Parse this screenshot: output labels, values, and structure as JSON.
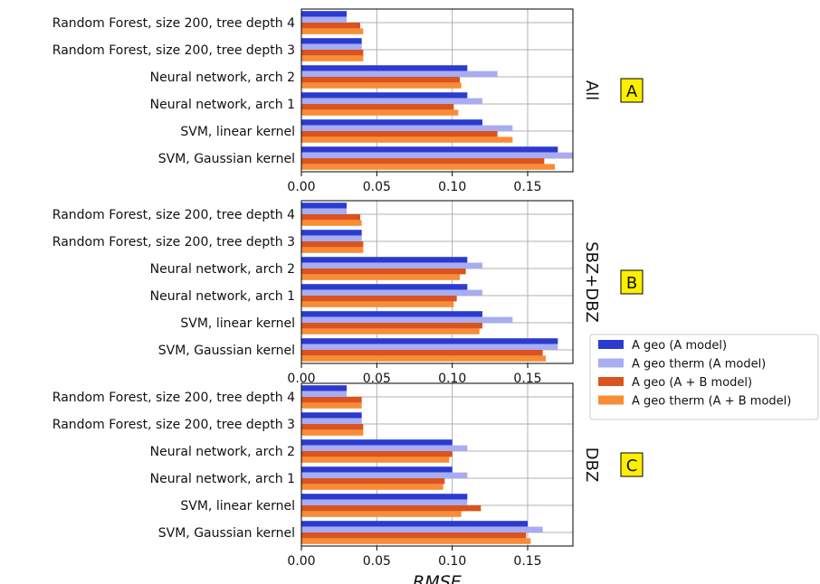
{
  "chart_data": [
    {
      "type": "bar",
      "orientation": "horizontal",
      "panel_label": "A",
      "side_label": "All",
      "categories": [
        "Random Forest, size 200, tree depth 4",
        "Random Forest, size 200, tree depth 3",
        "Neural network, arch 2",
        "Neural network, arch 1",
        "SVM, linear kernel",
        "SVM, Gaussian kernel"
      ],
      "series": [
        {
          "name": "A geo (A model)",
          "values": [
            0.03,
            0.04,
            0.11,
            0.11,
            0.12,
            0.17
          ]
        },
        {
          "name": "A geo therm (A model)",
          "values": [
            0.03,
            0.04,
            0.13,
            0.12,
            0.14,
            0.18
          ]
        },
        {
          "name": "A geo (A + B model)",
          "values": [
            0.039,
            0.041,
            0.105,
            0.101,
            0.13,
            0.161
          ]
        },
        {
          "name": "A geo therm (A + B  model)",
          "values": [
            0.041,
            0.041,
            0.106,
            0.104,
            0.14,
            0.168
          ]
        }
      ],
      "xlim": [
        0,
        0.18
      ],
      "xticks": [
        "0.00",
        "0.05",
        "0.10",
        "0.15"
      ],
      "grid": true
    },
    {
      "type": "bar",
      "orientation": "horizontal",
      "panel_label": "B",
      "side_label": "SBZ+DBZ",
      "categories": [
        "Random Forest, size 200, tree depth 4",
        "Random Forest, size 200, tree depth 3",
        "Neural network, arch 2",
        "Neural network, arch 1",
        "SVM, linear kernel",
        "SVM, Gaussian kernel"
      ],
      "series": [
        {
          "name": "A geo (A model)",
          "values": [
            0.03,
            0.04,
            0.11,
            0.11,
            0.12,
            0.17
          ]
        },
        {
          "name": "A geo therm (A model)",
          "values": [
            0.03,
            0.04,
            0.12,
            0.12,
            0.14,
            0.17
          ]
        },
        {
          "name": "A geo (A + B model)",
          "values": [
            0.039,
            0.041,
            0.109,
            0.103,
            0.12,
            0.16
          ]
        },
        {
          "name": "A geo therm (A + B  model)",
          "values": [
            0.04,
            0.041,
            0.105,
            0.101,
            0.118,
            0.162
          ]
        }
      ],
      "xlim": [
        0,
        0.18
      ],
      "xticks": [
        "0.00",
        "0.05",
        "0.10",
        "0.15"
      ],
      "grid": true
    },
    {
      "type": "bar",
      "orientation": "horizontal",
      "panel_label": "C",
      "side_label": "DBZ",
      "categories": [
        "Random Forest, size 200, tree depth 4",
        "Random Forest, size 200, tree depth 3",
        "Neural network, arch 2",
        "Neural network, arch 1",
        "SVM, linear kernel",
        "SVM, Gaussian kernel"
      ],
      "series": [
        {
          "name": "A geo (A model)",
          "values": [
            0.03,
            0.04,
            0.1,
            0.1,
            0.11,
            0.15
          ]
        },
        {
          "name": "A geo therm (A model)",
          "values": [
            0.03,
            0.04,
            0.11,
            0.11,
            0.11,
            0.16
          ]
        },
        {
          "name": "A geo (A + B model)",
          "values": [
            0.04,
            0.041,
            0.1,
            0.095,
            0.119,
            0.149
          ]
        },
        {
          "name": "A geo therm (A + B  model)",
          "values": [
            0.04,
            0.041,
            0.098,
            0.094,
            0.106,
            0.152
          ]
        }
      ],
      "xlim": [
        0,
        0.18
      ],
      "xticks": [
        "0.00",
        "0.05",
        "0.10",
        "0.15"
      ],
      "xlabel": "RMSE",
      "grid": true
    }
  ],
  "legend": {
    "placement": "right",
    "entries": [
      {
        "name": "A geo (A model)",
        "color": "#2b3bd0"
      },
      {
        "name": "A geo therm (A model)",
        "color": "#a8acf2"
      },
      {
        "name": "A geo (A + B model)",
        "color": "#d9541e"
      },
      {
        "name": "A geo therm (A + B  model)",
        "color": "#f98c36"
      }
    ]
  },
  "colors": {
    "series": [
      "#2b3bd0",
      "#a8acf2",
      "#d9541e",
      "#f98c36"
    ],
    "panel_label_bg": "#ffee00",
    "grid": "#b0b0b0"
  }
}
